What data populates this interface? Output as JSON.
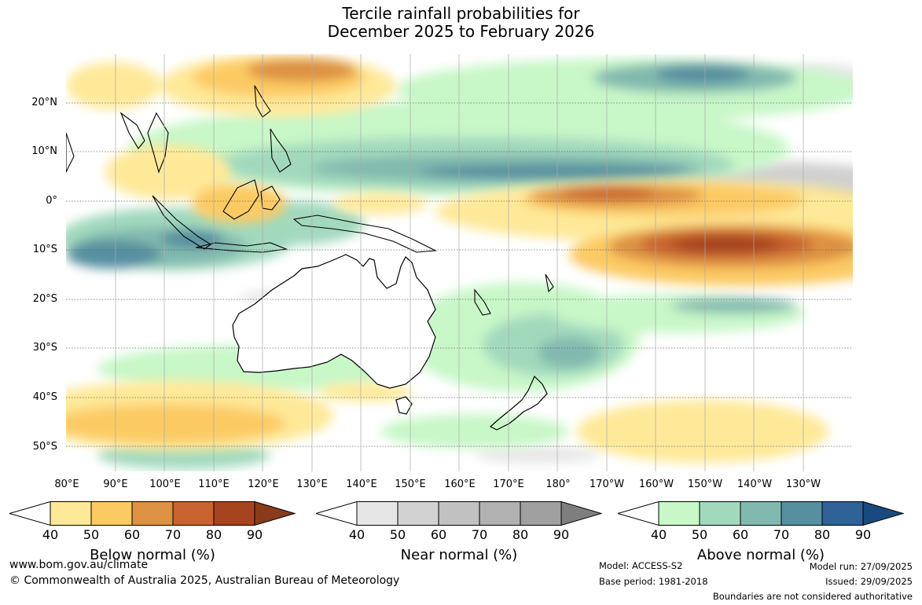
{
  "title": {
    "line1": "Tercile rainfall probabilities for",
    "line2": "December 2025 to February 2026"
  },
  "map": {
    "latitude_labels": [
      "20°N",
      "10°N",
      "0°",
      "10°S",
      "20°S",
      "30°S",
      "40°S",
      "50°S"
    ],
    "longitude_labels": [
      "80°E",
      "90°E",
      "100°E",
      "110°E",
      "120°E",
      "130°E",
      "140°E",
      "150°E",
      "160°E",
      "170°E",
      "180°",
      "170°W",
      "160°W",
      "150°W",
      "140°W",
      "130°W"
    ],
    "zones": [
      {
        "category": "below",
        "level": 90,
        "region": "central Pacific equatorial band"
      },
      {
        "category": "below",
        "level": 70,
        "region": "equatorial Pacific north of equator"
      },
      {
        "category": "above",
        "level": 80,
        "region": "eastern Indian Ocean near Indonesia"
      },
      {
        "category": "above",
        "level": 80,
        "region": "north-west Pacific band"
      },
      {
        "category": "near",
        "level": 60,
        "region": "eastern equatorial Pacific"
      }
    ]
  },
  "legend": {
    "below": {
      "title": "Below normal (%)",
      "ticks": [
        "40",
        "50",
        "60",
        "70",
        "80",
        "90"
      ],
      "colors": [
        "#ffffff",
        "#fee999",
        "#fcca63",
        "#dd9143",
        "#c8622f",
        "#a5441e",
        "#8b3a1a"
      ]
    },
    "near": {
      "title": "Near normal (%)",
      "ticks": [
        "40",
        "50",
        "60",
        "70",
        "80",
        "90"
      ],
      "colors": [
        "#ffffff",
        "#e6e6e6",
        "#d2d2d2",
        "#c1c1c1",
        "#b1b1b1",
        "#a0a0a0",
        "#7e7e7e"
      ]
    },
    "above": {
      "title": "Above normal (%)",
      "ticks": [
        "40",
        "50",
        "60",
        "70",
        "80",
        "90"
      ],
      "colors": [
        "#ffffff",
        "#c8f7c8",
        "#a2d9bd",
        "#82b9ae",
        "#568f9f",
        "#2f6296",
        "#184a7f"
      ]
    }
  },
  "footer": {
    "website": "www.bom.gov.au/climate",
    "copyright": "© Commonwealth of Australia 2025, Australian Bureau of Meteorology",
    "model": "Model: ACCESS-S2",
    "base_period": "Base period: 1981-2018",
    "model_run": "Model run: 27/09/2025",
    "issued": "Issued: 29/09/2025",
    "disclaimer": "Boundaries are not considered authoritative"
  }
}
